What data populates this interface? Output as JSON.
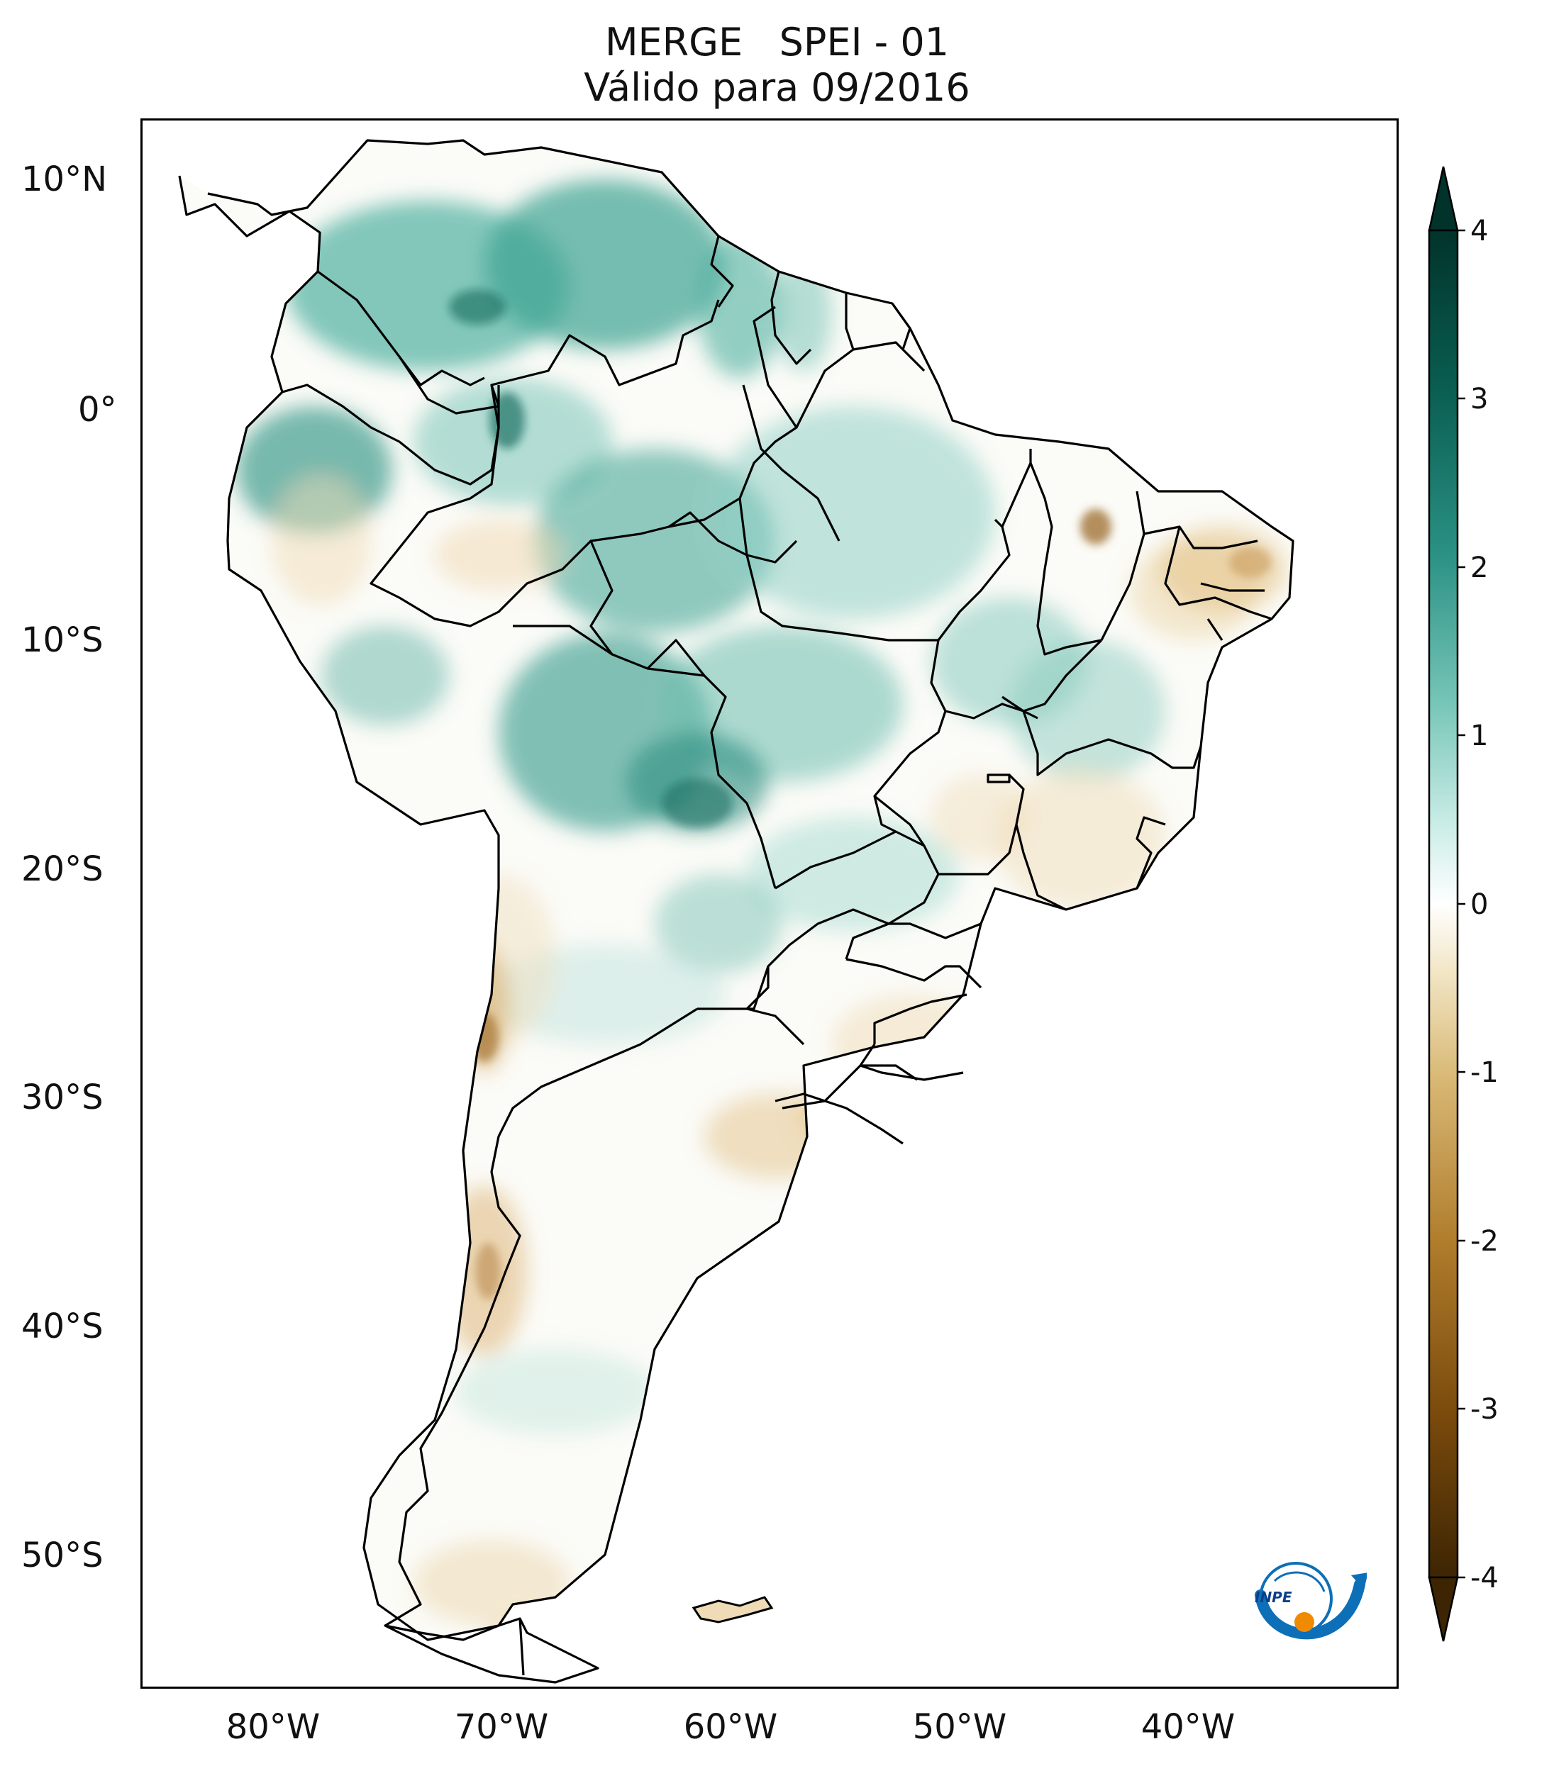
{
  "title": {
    "line1": "MERGE   SPEI - 01",
    "line2": "Válido para 09/2016"
  },
  "axes": {
    "lat_labels": [
      "10°N",
      "0°",
      "10°S",
      "20°S",
      "30°S",
      "40°S",
      "50°S"
    ],
    "lat_values": [
      10,
      0,
      -10,
      -20,
      -30,
      -40,
      -50
    ],
    "lon_labels": [
      "80°W",
      "70°W",
      "60°W",
      "50°W",
      "40°W"
    ],
    "lon_values": [
      -80,
      -70,
      -60,
      -50,
      -40
    ],
    "lon_range": [
      -85,
      -30
    ],
    "lat_range": [
      -56,
      12.5
    ]
  },
  "colorbar": {
    "ticks": [
      "4",
      "3",
      "2",
      "1",
      "0",
      "-1",
      "-2",
      "-3",
      "-4"
    ],
    "tick_values": [
      4,
      3,
      2,
      1,
      0,
      -1,
      -2,
      -3,
      -4
    ],
    "range": [
      -4,
      4
    ],
    "extend": "both",
    "colors": [
      "#3d2503",
      "#7a4a0c",
      "#b07d2c",
      "#d8b874",
      "#f2e6c6",
      "#ffffff",
      "#c9ece6",
      "#76c5b7",
      "#2a9184",
      "#0a5f52",
      "#01332b"
    ]
  },
  "logo": {
    "text": "INPE"
  },
  "colors": {
    "wet_dark": "#1d7d70",
    "wet_light": "#a8dcd2",
    "dry_light": "#ead6a8",
    "dry_dark": "#a26a22",
    "border": "#000000"
  }
}
